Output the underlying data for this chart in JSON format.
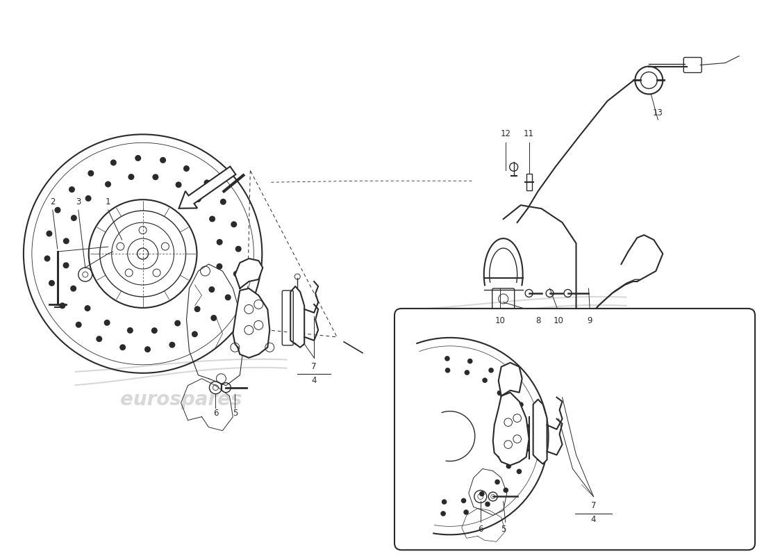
{
  "bg_color": "#ffffff",
  "line_color": "#2a2a2a",
  "fig_width": 11.0,
  "fig_height": 8.0,
  "dpi": 100
}
